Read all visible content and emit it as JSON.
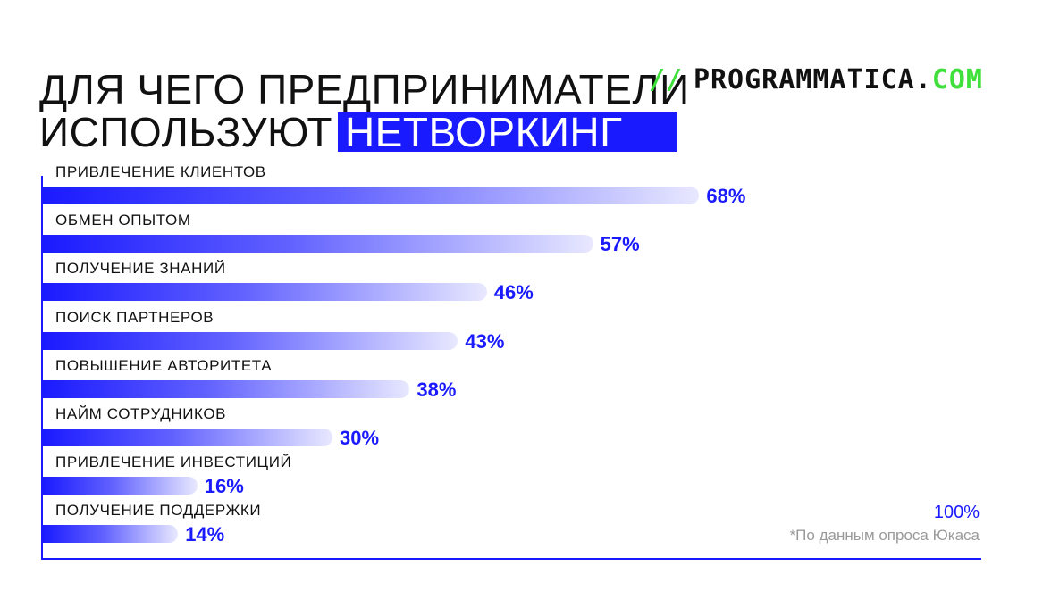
{
  "title": {
    "line1": "ДЛЯ ЧЕГО ПРЕДПРИНИМАТЕЛИ",
    "line2_prefix": "ИСПОЛЬЗУЮТ",
    "line2_highlight": "НЕТВОРКИНГ"
  },
  "logo": {
    "slashes": "//",
    "name": "PROGRAMMATICA.",
    "domain": "COM"
  },
  "colors": {
    "accent": "#1a1aff",
    "logo_green": "#3ee03a",
    "text": "#111111",
    "note": "#9a9a9a"
  },
  "chart_data": {
    "type": "bar",
    "orientation": "horizontal",
    "categories": [
      "ПРИВЛЕЧЕНИЕ КЛИЕНТОВ",
      "ОБМЕН ОПЫТОМ",
      "ПОЛУЧЕНИЕ ЗНАНИЙ",
      "ПОИСК ПАРТНЕРОВ",
      "ПОВЫШЕНИЕ АВТОРИТЕТА",
      "НАЙМ СОТРУДНИКОВ",
      "ПРИВЛЕЧЕНИЕ ИНВЕСТИЦИЙ",
      "ПОЛУЧЕНИЕ ПОДДЕРЖКИ"
    ],
    "values": [
      68,
      57,
      46,
      43,
      38,
      30,
      16,
      14
    ],
    "value_labels": [
      "68%",
      "57%",
      "46%",
      "43%",
      "38%",
      "30%",
      "16%",
      "14%"
    ],
    "xlim": [
      0,
      100
    ],
    "max_label": "100%",
    "grid": false,
    "legend": "none",
    "note": "*По данным опроса Юкаса"
  }
}
